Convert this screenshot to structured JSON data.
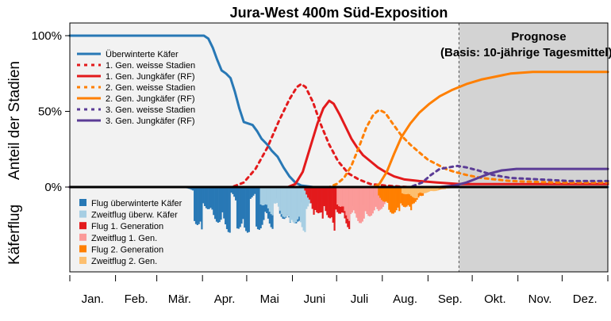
{
  "chart_data": {
    "type": "line",
    "title": "Jura-West 400m Süd-Exposition",
    "ylabel_top": "Anteil der Stadien",
    "ylabel_bottom": "Käferflug",
    "y_ticks": [
      "100%",
      "50%",
      "0%"
    ],
    "xlim": [
      1,
      366
    ],
    "ylim": [
      0,
      100
    ],
    "months": [
      "Jan.",
      "Feb.",
      "Mär.",
      "Apr.",
      "Mai",
      "Juni",
      "Juli",
      "Aug.",
      "Sep.",
      "Okt.",
      "Nov.",
      "Dez."
    ],
    "month_starts": [
      1,
      32,
      60,
      91,
      121,
      152,
      182,
      213,
      244,
      274,
      305,
      335,
      366
    ],
    "forecast": {
      "start_day": 265,
      "label_line1": "Prognose",
      "label_line2": "(Basis: 10-jährige Tagesmittel)",
      "color": "#d3d3d3"
    },
    "legend_top_position": "top-left",
    "legend_bottom_position": "left",
    "series": [
      {
        "name": "Überwinterte Käfer",
        "color": "#2878b5",
        "dash": false,
        "points": [
          [
            1,
            100
          ],
          [
            92,
            100
          ],
          [
            95,
            98
          ],
          [
            98,
            92
          ],
          [
            101,
            84
          ],
          [
            104,
            77
          ],
          [
            107,
            75
          ],
          [
            110,
            72
          ],
          [
            113,
            63
          ],
          [
            116,
            52
          ],
          [
            119,
            43
          ],
          [
            122,
            42
          ],
          [
            125,
            41
          ],
          [
            128,
            37
          ],
          [
            131,
            32
          ],
          [
            135,
            28
          ],
          [
            138,
            24
          ],
          [
            142,
            20
          ],
          [
            146,
            13
          ],
          [
            150,
            7
          ],
          [
            154,
            3
          ],
          [
            158,
            1
          ],
          [
            166,
            0
          ],
          [
            366,
            0
          ]
        ]
      },
      {
        "name": "1. Gen. weisse Stadien",
        "color": "#e31a1c",
        "dash": true,
        "points": [
          [
            1,
            0
          ],
          [
            111,
            0
          ],
          [
            119,
            3
          ],
          [
            127,
            12
          ],
          [
            135,
            26
          ],
          [
            143,
            44
          ],
          [
            150,
            58
          ],
          [
            155,
            66
          ],
          [
            158,
            68
          ],
          [
            161,
            66
          ],
          [
            166,
            56
          ],
          [
            171,
            42
          ],
          [
            177,
            28
          ],
          [
            183,
            17
          ],
          [
            190,
            9
          ],
          [
            197,
            5
          ],
          [
            205,
            2
          ],
          [
            215,
            1
          ],
          [
            230,
            0
          ],
          [
            366,
            0
          ]
        ]
      },
      {
        "name": "1. Gen. Jungkäfer (RF)",
        "color": "#e31a1c",
        "dash": false,
        "points": [
          [
            1,
            0
          ],
          [
            149,
            0
          ],
          [
            154,
            2
          ],
          [
            159,
            10
          ],
          [
            164,
            26
          ],
          [
            169,
            42
          ],
          [
            173,
            52
          ],
          [
            177,
            57
          ],
          [
            180,
            55
          ],
          [
            184,
            48
          ],
          [
            188,
            40
          ],
          [
            192,
            32
          ],
          [
            196,
            26
          ],
          [
            200,
            21
          ],
          [
            205,
            17
          ],
          [
            210,
            13
          ],
          [
            215,
            10
          ],
          [
            221,
            7
          ],
          [
            228,
            5
          ],
          [
            238,
            4
          ],
          [
            250,
            3
          ],
          [
            266,
            2
          ],
          [
            300,
            2
          ],
          [
            366,
            2
          ]
        ]
      },
      {
        "name": "2. Gen. weisse Stadien",
        "color": "#ff7f00",
        "dash": true,
        "points": [
          [
            1,
            0
          ],
          [
            177,
            0
          ],
          [
            182,
            2
          ],
          [
            187,
            6
          ],
          [
            192,
            14
          ],
          [
            197,
            26
          ],
          [
            202,
            39
          ],
          [
            207,
            48
          ],
          [
            211,
            51
          ],
          [
            215,
            49
          ],
          [
            220,
            42
          ],
          [
            226,
            34
          ],
          [
            232,
            28
          ],
          [
            238,
            23
          ],
          [
            244,
            18
          ],
          [
            250,
            15
          ],
          [
            256,
            12
          ],
          [
            262,
            10
          ],
          [
            270,
            8
          ],
          [
            280,
            6
          ],
          [
            300,
            4
          ],
          [
            330,
            3
          ],
          [
            366,
            3
          ]
        ]
      },
      {
        "name": "2. Gen. Jungkäfer (RF)",
        "color": "#ff7f00",
        "dash": false,
        "points": [
          [
            1,
            0
          ],
          [
            207,
            0
          ],
          [
            211,
            2
          ],
          [
            216,
            10
          ],
          [
            221,
            22
          ],
          [
            226,
            33
          ],
          [
            232,
            42
          ],
          [
            238,
            49
          ],
          [
            245,
            55
          ],
          [
            252,
            60
          ],
          [
            260,
            64
          ],
          [
            270,
            68
          ],
          [
            280,
            71
          ],
          [
            290,
            73
          ],
          [
            300,
            75
          ],
          [
            315,
            76
          ],
          [
            335,
            76
          ],
          [
            366,
            76
          ]
        ]
      },
      {
        "name": "3. Gen. weisse Stadien",
        "color": "#5b3c96",
        "dash": true,
        "points": [
          [
            1,
            0
          ],
          [
            232,
            0
          ],
          [
            240,
            3
          ],
          [
            246,
            8
          ],
          [
            252,
            12
          ],
          [
            258,
            13
          ],
          [
            264,
            14
          ],
          [
            270,
            13
          ],
          [
            278,
            11
          ],
          [
            288,
            8
          ],
          [
            300,
            6
          ],
          [
            320,
            5
          ],
          [
            340,
            4
          ],
          [
            366,
            4
          ]
        ]
      },
      {
        "name": "3. Gen. Jungkäfer (RF)",
        "color": "#5b3c96",
        "dash": false,
        "points": [
          [
            1,
            0
          ],
          [
            252,
            0
          ],
          [
            262,
            1
          ],
          [
            270,
            3
          ],
          [
            278,
            6
          ],
          [
            286,
            9
          ],
          [
            294,
            11
          ],
          [
            304,
            12
          ],
          [
            320,
            12
          ],
          [
            340,
            12
          ],
          [
            366,
            12
          ]
        ]
      }
    ],
    "flight_series": [
      {
        "name": "Flug überwinterte Käfer",
        "color": "#2878b5",
        "segments": [
          [
            79,
            84,
            0.0,
            0.05
          ],
          [
            85,
            90,
            0.6,
            0.9
          ],
          [
            91,
            97,
            0.3,
            0.5
          ],
          [
            98,
            103,
            0.55,
            0.7
          ],
          [
            104,
            109,
            0.6,
            0.85
          ],
          [
            110,
            113,
            0.1,
            0.25
          ],
          [
            114,
            118,
            0.75,
            0.7
          ],
          [
            119,
            122,
            0.95,
            0.8
          ],
          [
            123,
            126,
            0.2,
            0.15
          ],
          [
            127,
            132,
            0.85,
            0.65
          ],
          [
            133,
            138,
            0.55,
            0.75
          ],
          [
            139,
            142,
            0.2,
            0.3
          ],
          [
            143,
            150,
            0.5,
            0.7
          ],
          [
            151,
            156,
            0.55,
            0.8
          ],
          [
            157,
            164,
            0.3,
            0.15
          ],
          [
            165,
            172,
            0.1,
            0.05
          ]
        ]
      },
      {
        "name": "Zweitflug überw. Käfer",
        "color": "#a6cee3",
        "segments": [
          [
            130,
            138,
            0.3,
            0.5
          ],
          [
            139,
            150,
            0.3,
            0.7
          ],
          [
            151,
            160,
            0.6,
            0.8
          ],
          [
            161,
            175,
            0.4,
            0.2
          ],
          [
            176,
            195,
            0.15,
            0.05
          ],
          [
            196,
            215,
            0.04,
            0.0
          ]
        ]
      },
      {
        "name": "Flug 1. Generation",
        "color": "#e31a1c",
        "segments": [
          [
            160,
            166,
            0.05,
            0.5
          ],
          [
            167,
            172,
            0.4,
            0.65
          ],
          [
            173,
            180,
            0.35,
            0.85
          ],
          [
            181,
            190,
            0.4,
            0.75
          ],
          [
            191,
            196,
            0.35,
            0.55
          ],
          [
            197,
            203,
            0.3,
            0.45
          ],
          [
            204,
            212,
            0.2,
            0.15
          ],
          [
            213,
            222,
            0.1,
            0.05
          ]
        ]
      },
      {
        "name": "Zweitflug 1. Gen.",
        "color": "#fb9a99",
        "segments": [
          [
            182,
            190,
            0.3,
            0.6
          ],
          [
            191,
            200,
            0.5,
            0.7
          ],
          [
            201,
            210,
            0.55,
            0.45
          ],
          [
            211,
            220,
            0.4,
            0.2
          ],
          [
            221,
            235,
            0.12,
            0.03
          ]
        ]
      },
      {
        "name": "Flug 2. Generation",
        "color": "#ff7f00",
        "segments": [
          [
            210,
            216,
            0.15,
            0.35
          ],
          [
            217,
            224,
            0.45,
            0.5
          ],
          [
            225,
            232,
            0.3,
            0.45
          ],
          [
            233,
            240,
            0.3,
            0.15
          ],
          [
            241,
            255,
            0.08,
            0.02
          ]
        ]
      },
      {
        "name": "Zweitflug 2. Gen.",
        "color": "#fdbf6f",
        "segments": [
          [
            226,
            236,
            0.1,
            0.2
          ],
          [
            237,
            250,
            0.12,
            0.05
          ],
          [
            251,
            265,
            0.02,
            0.0
          ]
        ]
      }
    ]
  }
}
